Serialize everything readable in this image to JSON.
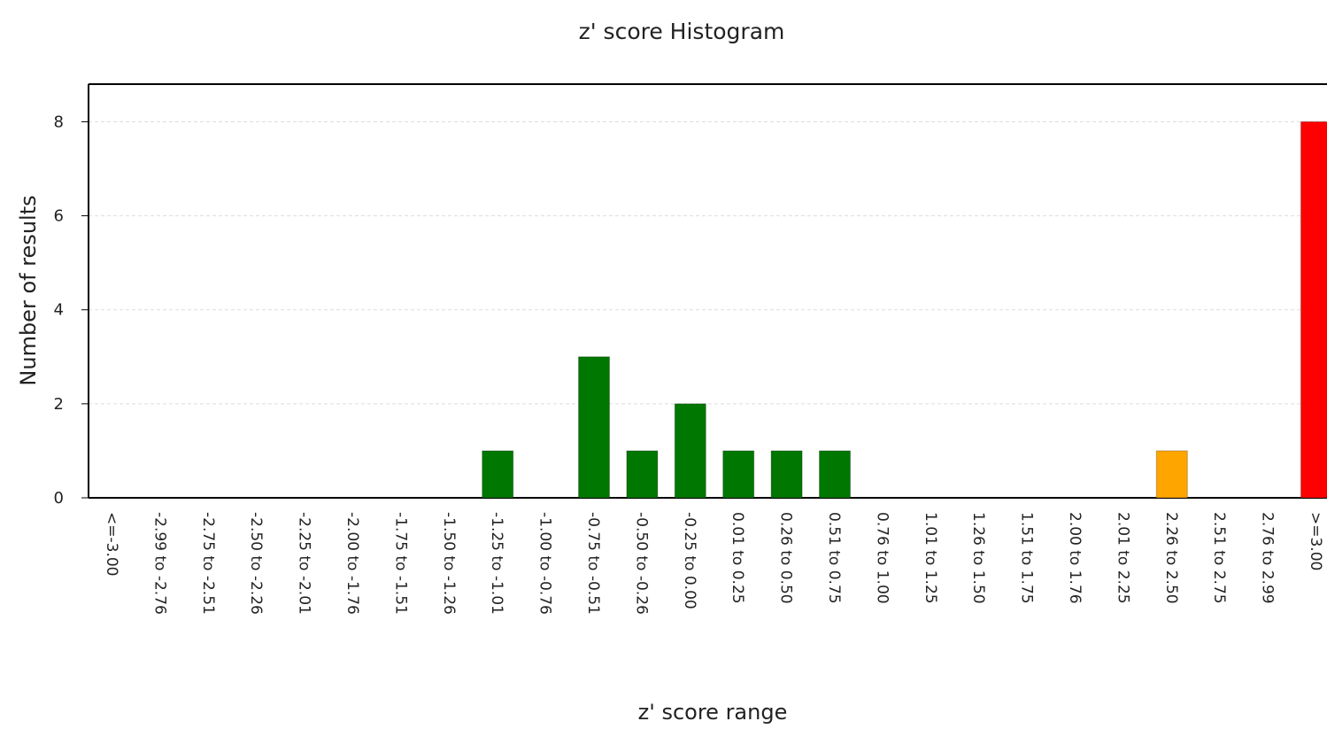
{
  "chart_data": {
    "type": "bar",
    "title": "z' score Histogram",
    "x_label": "z' score range",
    "y_label": "Number of results",
    "categories": [
      "<=-3.00",
      "-2.99 to -2.76",
      "-2.75 to -2.51",
      "-2.50 to -2.26",
      "-2.25 to -2.01",
      "-2.00 to -1.76",
      "-1.75 to -1.51",
      "-1.50 to -1.26",
      "-1.25 to -1.01",
      "-1.00 to -0.76",
      "-0.75 to -0.51",
      "-0.50 to -0.26",
      "-0.25 to 0.00",
      "0.01 to 0.25",
      "0.26 to 0.50",
      "0.51 to 0.75",
      "0.76 to 1.00",
      "1.01 to 1.25",
      "1.26 to 1.50",
      "1.51 to 1.75",
      "2.00 to 1.76",
      "2.01 to 2.25",
      "2.26 to 2.50",
      "2.51 to 2.75",
      "2.76 to 2.99",
      ">=3.00"
    ],
    "values": [
      0,
      0,
      0,
      0,
      0,
      0,
      0,
      0,
      1,
      0,
      3,
      1,
      2,
      1,
      1,
      1,
      0,
      0,
      0,
      0,
      0,
      0,
      1,
      0,
      0,
      8
    ],
    "colors": [
      "#ff0000",
      "#ffa500",
      "#ffa500",
      "#007700",
      "#007700",
      "#007700",
      "#007700",
      "#007700",
      "#007700",
      "#007700",
      "#007700",
      "#007700",
      "#007700",
      "#007700",
      "#007700",
      "#007700",
      "#007700",
      "#007700",
      "#007700",
      "#007700",
      "#007700",
      "#007700",
      "#ffa500",
      "#ffa500",
      "#ffa500",
      "#ff0000"
    ],
    "ylim": [
      0,
      8.8
    ],
    "yticks": [
      0,
      2,
      4,
      6,
      8
    ],
    "grid": true
  }
}
